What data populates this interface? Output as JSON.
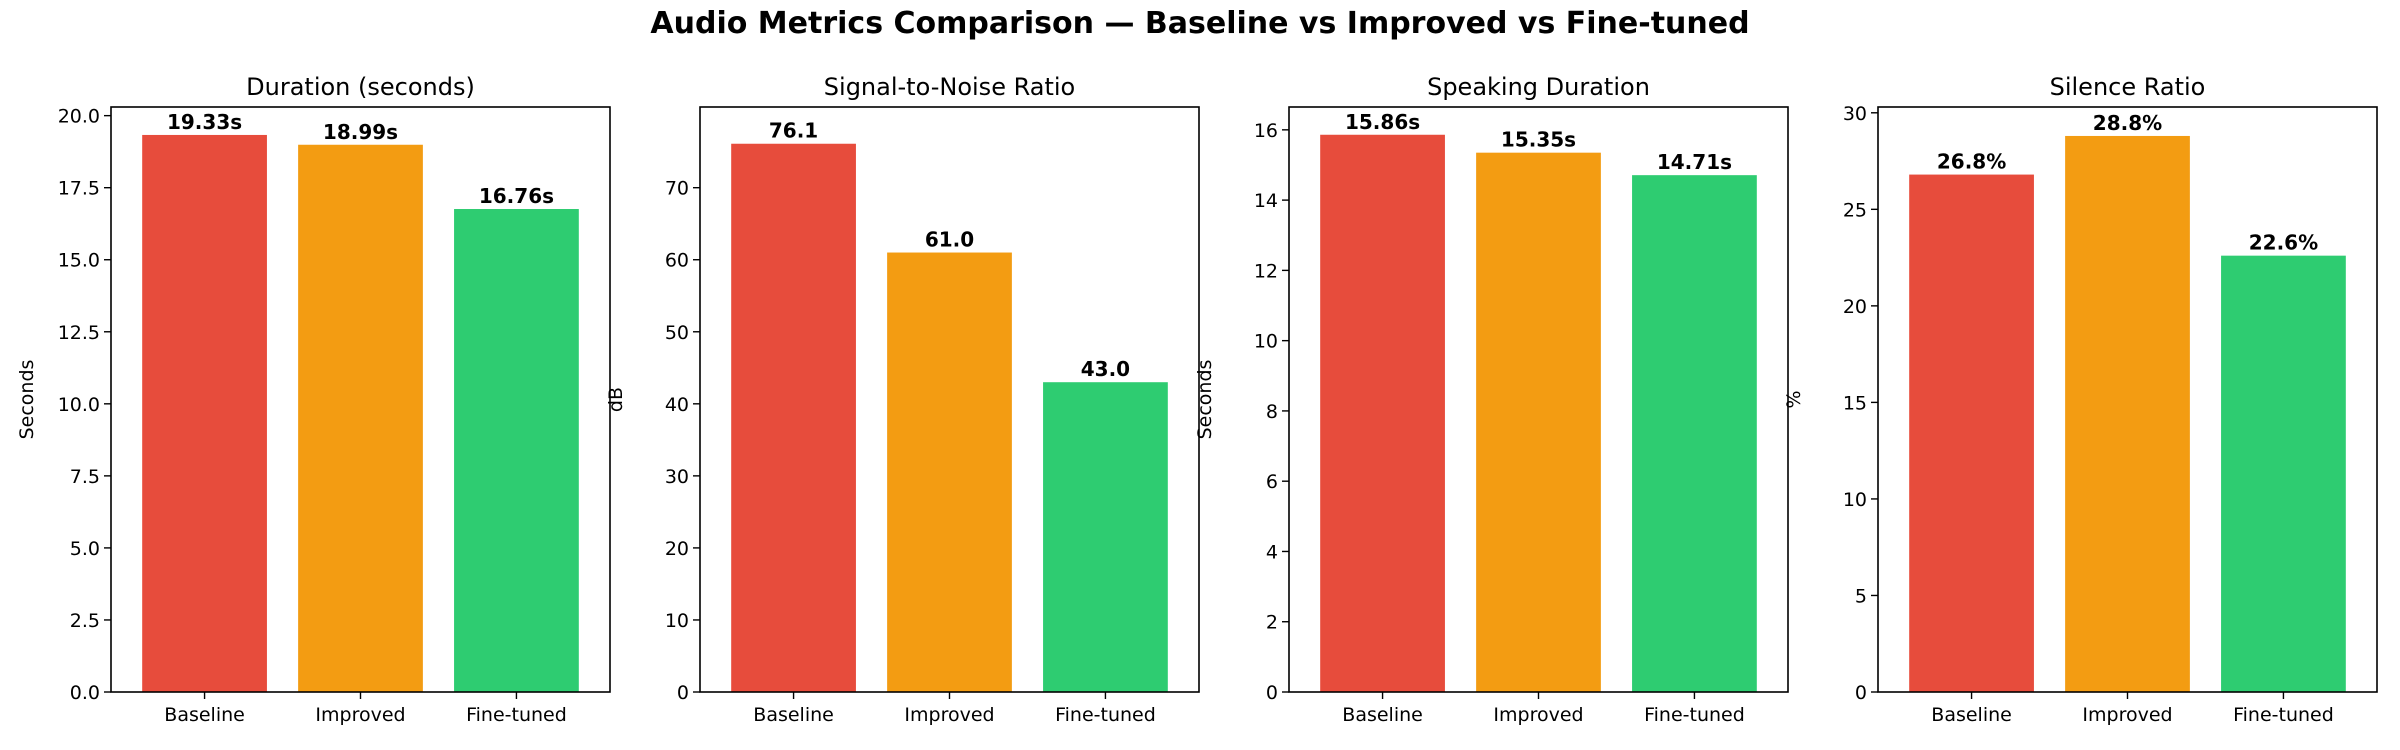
{
  "suptitle": "Audio Metrics Comparison — Baseline vs Improved vs Fine-tuned",
  "colors": [
    "#e74c3c",
    "#f39c12",
    "#2ecc71"
  ],
  "chart_data": [
    {
      "type": "bar",
      "title": "Duration (seconds)",
      "xlabel": "",
      "ylabel": "Seconds",
      "categories": [
        "Baseline",
        "Improved",
        "Fine-tuned"
      ],
      "values": [
        19.33,
        18.99,
        16.76
      ],
      "labels": [
        "19.33s",
        "18.99s",
        "16.76s"
      ],
      "ylim": [
        0,
        20.3
      ],
      "yticks": [
        0,
        2.5,
        5,
        7.5,
        10,
        12.5,
        15,
        17.5,
        20
      ],
      "yticklabels": [
        "0.0",
        "2.5",
        "5.0",
        "7.5",
        "10.0",
        "12.5",
        "15.0",
        "17.5",
        "20.0"
      ],
      "grid": false
    },
    {
      "type": "bar",
      "title": "Signal-to-Noise Ratio",
      "xlabel": "",
      "ylabel": "dB",
      "categories": [
        "Baseline",
        "Improved",
        "Fine-tuned"
      ],
      "values": [
        76.1,
        61.0,
        43.0
      ],
      "labels": [
        "76.1",
        "61.0",
        "43.0"
      ],
      "ylim": [
        0,
        81.2
      ],
      "yticks": [
        0,
        10,
        20,
        30,
        40,
        50,
        60,
        70
      ],
      "yticklabels": [
        "0",
        "10",
        "20",
        "30",
        "40",
        "50",
        "60",
        "70"
      ],
      "grid": false
    },
    {
      "type": "bar",
      "title": "Speaking Duration",
      "xlabel": "",
      "ylabel": "Seconds",
      "categories": [
        "Baseline",
        "Improved",
        "Fine-tuned"
      ],
      "values": [
        15.86,
        15.35,
        14.71
      ],
      "labels": [
        "15.86s",
        "15.35s",
        "14.71s"
      ],
      "ylim": [
        0,
        16.65
      ],
      "yticks": [
        0,
        2,
        4,
        6,
        8,
        10,
        12,
        14,
        16
      ],
      "yticklabels": [
        "0",
        "2",
        "4",
        "6",
        "8",
        "10",
        "12",
        "14",
        "16"
      ],
      "grid": false
    },
    {
      "type": "bar",
      "title": "Silence Ratio",
      "xlabel": "",
      "ylabel": "%",
      "categories": [
        "Baseline",
        "Improved",
        "Fine-tuned"
      ],
      "values": [
        26.8,
        28.8,
        22.6
      ],
      "labels": [
        "26.8%",
        "28.8%",
        "22.6%"
      ],
      "ylim": [
        0,
        30.3
      ],
      "yticks": [
        0,
        5,
        10,
        15,
        20,
        25,
        30
      ],
      "yticklabels": [
        "0",
        "5",
        "10",
        "15",
        "20",
        "25",
        "30"
      ],
      "grid": false
    }
  ]
}
